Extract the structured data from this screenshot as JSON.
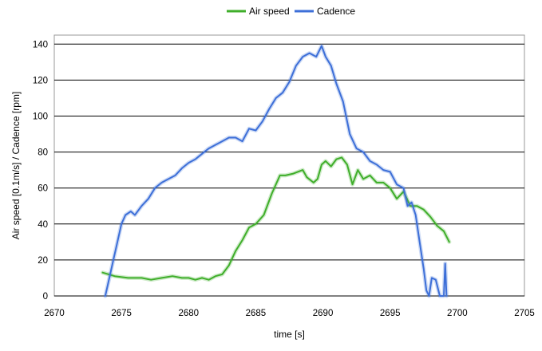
{
  "chart_data": {
    "type": "line",
    "xlabel": "time [s]",
    "ylabel": "Air speed [0.1m/s] / Cadence [rpm]",
    "xlim": [
      2670,
      2705
    ],
    "ylim": [
      0,
      145
    ],
    "x_ticks": [
      "2670",
      "2675",
      "2680",
      "2685",
      "2690",
      "2695",
      "2700",
      "2705"
    ],
    "y_ticks": [
      "0",
      "20",
      "40",
      "60",
      "80",
      "100",
      "120",
      "140"
    ],
    "grid": "horizontal",
    "legend_position": "top",
    "series": [
      {
        "name": "Air speed",
        "color": "#3fae2a",
        "x": [
          2673.6,
          2674.5,
          2675.5,
          2676.5,
          2677.2,
          2678,
          2678.8,
          2679.5,
          2680,
          2680.5,
          2681,
          2681.5,
          2682,
          2682.5,
          2683,
          2683.5,
          2684,
          2684.5,
          2685,
          2685.6,
          2686.2,
          2686.8,
          2687.2,
          2687.8,
          2688.5,
          2688.8,
          2689.3,
          2689.6,
          2689.9,
          2690.2,
          2690.6,
          2691,
          2691.4,
          2691.8,
          2692.2,
          2692.6,
          2693,
          2693.5,
          2694,
          2694.5,
          2695,
          2695.5,
          2696,
          2696.5,
          2697,
          2697.5,
          2698,
          2698.5,
          2699,
          2699.4
        ],
        "y": [
          13,
          11,
          10,
          10,
          9,
          10,
          11,
          10,
          10,
          9,
          10,
          9,
          11,
          12,
          17,
          25,
          31,
          38,
          40,
          45,
          57,
          67,
          67,
          68,
          70,
          66,
          63,
          65,
          73,
          75,
          72,
          76,
          77,
          73,
          62,
          70,
          65,
          67,
          63,
          63,
          60,
          54,
          58,
          50,
          50,
          48,
          44,
          39,
          36,
          30
        ]
      },
      {
        "name": "Cadence",
        "color": "#3d6fd8",
        "x": [
          2673.8,
          2674.1,
          2674.4,
          2674.7,
          2675,
          2675.3,
          2675.7,
          2676,
          2676.5,
          2677,
          2677.5,
          2678,
          2678.5,
          2679,
          2679.5,
          2680,
          2680.5,
          2681,
          2681.5,
          2682,
          2682.5,
          2683,
          2683.5,
          2684,
          2684.5,
          2685,
          2685.5,
          2686,
          2686.5,
          2687,
          2687.5,
          2688,
          2688.5,
          2689,
          2689.5,
          2689.9,
          2690.2,
          2690.6,
          2691,
          2691.5,
          2692,
          2692.5,
          2693,
          2693.5,
          2694,
          2694.5,
          2695,
          2695.5,
          2696,
          2696.3,
          2696.6,
          2696.9,
          2697.2,
          2697.5,
          2697.7,
          2697.9,
          2698.1,
          2698.4,
          2698.7,
          2699,
          2699.1,
          2699.2
        ],
        "y": [
          0,
          10,
          20,
          30,
          40,
          45,
          47,
          45,
          50,
          54,
          60,
          63,
          65,
          67,
          71,
          74,
          76,
          79,
          82,
          84,
          86,
          88,
          88,
          86,
          93,
          92,
          97,
          104,
          110,
          113,
          119,
          128,
          133,
          135,
          133,
          139,
          133,
          128,
          118,
          108,
          90,
          82,
          80,
          75,
          73,
          70,
          69,
          62,
          60,
          50,
          52,
          45,
          30,
          15,
          3,
          0,
          10,
          9,
          0,
          0,
          18,
          0
        ]
      }
    ]
  }
}
